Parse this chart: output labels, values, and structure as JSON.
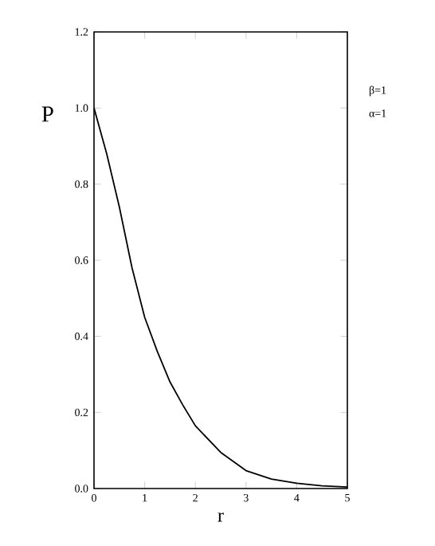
{
  "chart_data": {
    "type": "line",
    "xlabel": "r",
    "ylabel": "P",
    "annotations": [
      "β=1",
      "α=1"
    ],
    "xlim": [
      0,
      5
    ],
    "ylim": [
      0,
      1.2
    ],
    "xticks": [
      0,
      1,
      2,
      3,
      4,
      5
    ],
    "yticks": [
      {
        "value": 0,
        "label": "0.0"
      },
      0.2,
      0.4,
      0.6,
      0.8,
      {
        "value": 1,
        "label": "1.0"
      },
      1.2
    ],
    "series": [
      {
        "color": "#000000",
        "x": [
          0,
          0.25,
          0.5,
          0.75,
          1,
          1.25,
          1.5,
          1.75,
          2,
          2.5,
          3,
          3.5,
          4,
          4.5,
          5
        ],
        "values": [
          1.0,
          0.88,
          0.74,
          0.58,
          0.45,
          0.36,
          0.28,
          0.22,
          0.165,
          0.095,
          0.047,
          0.025,
          0.014,
          0.007,
          0.004
        ]
      }
    ]
  }
}
